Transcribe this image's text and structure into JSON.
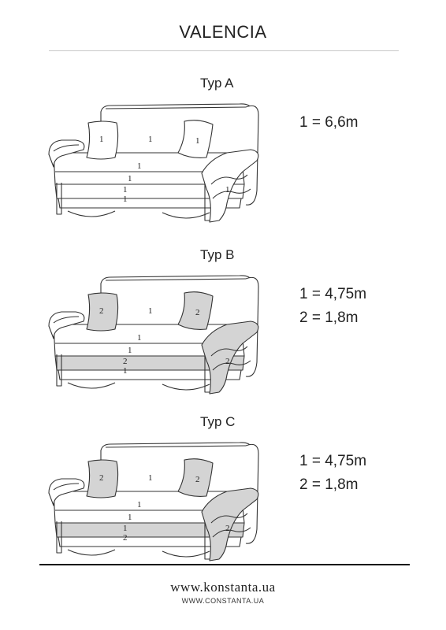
{
  "title": "VALENCIA",
  "sections": [
    {
      "label": "Typ A",
      "specs": [
        "1 = 6,6m"
      ],
      "fabric2_pillows": false,
      "fabric2_base": false,
      "labels": {
        "pillow_left": "1",
        "back": "1",
        "pillow_right": "1",
        "seat": "1",
        "front": "1",
        "base1": "1",
        "base2": "1",
        "arm": "1"
      }
    },
    {
      "label": "Typ B",
      "specs": [
        "1 = 4,75m",
        "2 = 1,8m"
      ],
      "fabric2_pillows": true,
      "fabric2_base": true,
      "labels": {
        "pillow_left": "2",
        "back": "1",
        "pillow_right": "2",
        "seat": "1",
        "front": "1",
        "base1": "2",
        "base2": "1",
        "arm": "2"
      }
    },
    {
      "label": "Typ C",
      "specs": [
        "1 = 4,75m",
        "2 = 1,8m"
      ],
      "fabric2_pillows": true,
      "fabric2_base": true,
      "labels": {
        "pillow_left": "2",
        "back": "1",
        "pillow_right": "2",
        "seat": "1",
        "front": "1",
        "base1": "1",
        "base2": "2",
        "arm": "2"
      }
    }
  ],
  "footer": {
    "site": "www.konstanta.ua",
    "site_caps": "WWW.CONSTANTA.UA"
  },
  "colors": {
    "fabric1": "#ffffff",
    "fabric2": "#d4d4d4",
    "outline": "#333333"
  }
}
